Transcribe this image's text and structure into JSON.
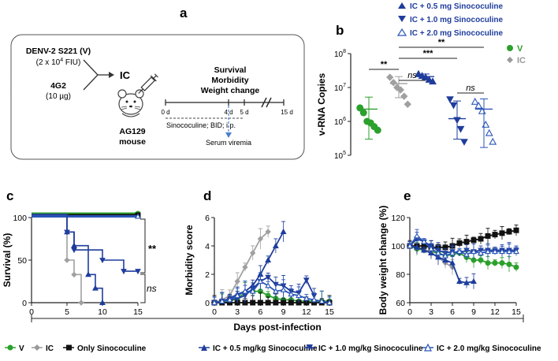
{
  "panel_labels": {
    "a": "a",
    "b": "b",
    "c": "c",
    "d": "d",
    "e": "e"
  },
  "colors": {
    "V": "#2ca02c",
    "IC": "#a0a0a0",
    "only": "#111111",
    "ic05": "#1f3d9c",
    "ic10": "#1f3d9c",
    "ic20": "#2a55b8",
    "legend_text": "#1f3d9c",
    "dash_arrow": "#4a7fd0"
  },
  "schematic": {
    "virus_line1": "DENV-2 S221 (V)",
    "virus_line2_pre": "(2 x 10",
    "virus_line2_sup": "4",
    "virus_line2_post": " FIU)",
    "ab_line1": "4G2",
    "ab_line2": "(10 µg)",
    "ic_label": "IC",
    "mouse_line1": "AG129",
    "mouse_line2": "mouse",
    "readout_title1": "Survival",
    "readout_title2": "Morbidity",
    "readout_title3": "Weight change",
    "timeline_ticks": [
      "0 d",
      "4 d",
      "5 d",
      "15 d"
    ],
    "treatment_label": "Sinococuline; BID; i.p.",
    "serum_label": "Serum viremia",
    "mouse_icon": "mouse-icon",
    "syringe_icon": "syringe-icon"
  },
  "legend_top": [
    {
      "label": "IC + 0.5 mg Sinococuline",
      "marker": "triangle-up-filled"
    },
    {
      "label": "IC + 1.0 mg Sinococuline",
      "marker": "triangle-down-filled"
    },
    {
      "label": "IC + 2.0 mg Sinococuline",
      "marker": "triangle-up-open"
    }
  ],
  "legend_b": [
    {
      "label": "V",
      "marker": "circle"
    },
    {
      "label": "IC",
      "marker": "diamond"
    }
  ],
  "legend_bottom": [
    {
      "label": "V",
      "marker": "circle"
    },
    {
      "label": "IC",
      "marker": "diamond"
    },
    {
      "label": "Only Sinococuline",
      "marker": "square"
    },
    {
      "label": "IC + 0.5 mg/kg Sinococuline",
      "marker": "triangle-up-filled"
    },
    {
      "label": "IC + 1.0 mg/kg Sinococuline",
      "marker": "triangle-down-filled"
    },
    {
      "label": "IC + 2.0 mg/kg Sinococuline",
      "marker": "triangle-up-open"
    }
  ],
  "shared_xlabel": "Days post-infection",
  "chart_data": [
    {
      "panel": "b",
      "type": "scatter",
      "ylabel": "v-RNA Copies",
      "yscale": "log",
      "ylim": [
        100000,
        100000000
      ],
      "yticks": [
        {
          "base": "10",
          "exp": "5",
          "value": 100000
        },
        {
          "base": "10",
          "exp": "6",
          "value": 1000000
        },
        {
          "base": "10",
          "exp": "7",
          "value": 10000000
        },
        {
          "base": "10",
          "exp": "8",
          "value": 100000000
        }
      ],
      "groups": [
        {
          "name": "V",
          "points": [
            2500000,
            1800000,
            1000000,
            900000,
            700000,
            550000
          ],
          "mean": 2300000,
          "sd_low": 300000,
          "sd_high": 5200000
        },
        {
          "name": "IC",
          "points": [
            20000000,
            14000000,
            10000000,
            8500000,
            5500000,
            3200000
          ],
          "mean": 13000000,
          "sd_low": 5000000,
          "sd_high": 21000000
        },
        {
          "name": "IC + 0.5 mg",
          "points": [
            25000000,
            22000000,
            20000000,
            17000000,
            15000000
          ],
          "mean": 21000000,
          "sd_low": 17000000,
          "sd_high": 25000000
        },
        {
          "name": "IC + 1.0 mg",
          "points": [
            4500000,
            3000000,
            1100000,
            600000,
            250000
          ],
          "mean": 1200000,
          "sd_low": 300000,
          "sd_high": 4000000
        },
        {
          "name": "IC + 2.0 mg",
          "points": [
            3800000,
            2900000,
            2000000,
            800000,
            450000,
            250000
          ],
          "mean": 2300000,
          "sd_low": 170000,
          "sd_high": 4600000
        }
      ],
      "significance": [
        {
          "label": "**",
          "pair": [
            "V",
            "IC"
          ]
        },
        {
          "label": "ns",
          "pair": [
            "IC",
            "IC + 0.5 mg"
          ]
        },
        {
          "label": "***",
          "pair": [
            "IC",
            "IC + 1.0 mg"
          ]
        },
        {
          "label": "**",
          "pair": [
            "IC",
            "IC + 2.0 mg"
          ]
        },
        {
          "label": "ns",
          "pair": [
            "IC + 1.0 mg",
            "IC + 2.0 mg"
          ]
        }
      ]
    },
    {
      "panel": "c",
      "type": "line",
      "style": "step",
      "ylabel": "Survival (%)",
      "xlim": [
        0,
        15
      ],
      "ylim": [
        0,
        100
      ],
      "xticks": [
        0,
        5,
        10,
        15
      ],
      "yticks": [
        0,
        50,
        100
      ],
      "series": [
        {
          "name": "V",
          "x": [
            0,
            15
          ],
          "y": [
            100,
            100
          ]
        },
        {
          "name": "Only Sinococuline",
          "x": [
            0,
            15
          ],
          "y": [
            100,
            100
          ]
        },
        {
          "name": "IC + 2.0 mg",
          "x": [
            0,
            15
          ],
          "y": [
            100,
            100
          ]
        },
        {
          "name": "IC",
          "x": [
            0,
            5,
            6,
            7
          ],
          "y": [
            100,
            50,
            33,
            0
          ]
        },
        {
          "name": "IC + 0.5 mg",
          "x": [
            0,
            5,
            6,
            8,
            9,
            10
          ],
          "y": [
            100,
            83,
            67,
            33,
            17,
            0
          ]
        },
        {
          "name": "IC + 1.0 mg",
          "x": [
            0,
            5,
            6,
            10,
            13,
            15
          ],
          "y": [
            100,
            83,
            62,
            50,
            37,
            37
          ]
        }
      ],
      "annotations": [
        "**",
        "ns"
      ]
    },
    {
      "panel": "d",
      "type": "line",
      "ylabel": "Morbidity score",
      "xlim": [
        0,
        15
      ],
      "ylim": [
        0,
        6
      ],
      "xticks": [
        0,
        3,
        6,
        9,
        12,
        15
      ],
      "yticks": [
        0,
        2,
        4,
        6
      ],
      "series": [
        {
          "name": "V",
          "x": [
            0,
            1,
            2,
            3,
            4,
            5,
            6,
            7,
            8,
            9,
            10,
            11,
            12,
            13,
            14,
            15
          ],
          "y": [
            0,
            0,
            0.1,
            0.3,
            0.7,
            0.8,
            0.8,
            0.5,
            0.3,
            0.2,
            0.2,
            0.1,
            0.1,
            0.1,
            0.1,
            0.1
          ]
        },
        {
          "name": "IC",
          "x": [
            0,
            1,
            2,
            3,
            4,
            5,
            6,
            7
          ],
          "y": [
            0,
            0.2,
            0.5,
            1.5,
            2.5,
            3.5,
            4.5,
            5
          ]
        },
        {
          "name": "Only Sinococuline",
          "x": [
            0,
            1,
            2,
            3,
            4,
            5,
            6,
            7,
            8,
            9,
            10,
            11,
            12,
            13,
            14,
            15
          ],
          "y": [
            0,
            0,
            0,
            0,
            0,
            0,
            0,
            0,
            0,
            0,
            0,
            0,
            0,
            0,
            0,
            0
          ]
        },
        {
          "name": "IC + 0.5 mg",
          "x": [
            0,
            1,
            2,
            3,
            4,
            5,
            6,
            7,
            8,
            9
          ],
          "y": [
            0,
            0.1,
            0.3,
            0.6,
            0.8,
            1.2,
            2,
            3,
            4,
            5
          ]
        },
        {
          "name": "IC + 1.0 mg",
          "x": [
            0,
            1,
            2,
            3,
            4,
            5,
            6,
            7,
            8,
            9,
            10,
            11,
            12,
            13
          ],
          "y": [
            0,
            0.1,
            0.2,
            0.3,
            0.5,
            1,
            1.5,
            1.8,
            1.3,
            1.2,
            0.8,
            0.7,
            1.6,
            0.5
          ]
        },
        {
          "name": "IC + 2.0 mg",
          "x": [
            0,
            1,
            2,
            3,
            4,
            5,
            6,
            7,
            8,
            9,
            10,
            11,
            12,
            13,
            14,
            15
          ],
          "y": [
            0,
            0.1,
            0.2,
            0.5,
            0.8,
            0.8,
            1.5,
            1.2,
            0.8,
            0.9,
            0.6,
            0.5,
            0.3,
            0.2,
            0.1,
            0
          ]
        }
      ]
    },
    {
      "panel": "e",
      "type": "line",
      "ylabel": "Body weight change (%)",
      "xlim": [
        0,
        15
      ],
      "ylim": [
        60,
        120
      ],
      "xticks": [
        0,
        3,
        6,
        9,
        12,
        15
      ],
      "yticks": [
        60,
        80,
        100,
        120
      ],
      "series": [
        {
          "name": "V",
          "x": [
            0,
            1,
            2,
            3,
            4,
            5,
            6,
            7,
            8,
            9,
            10,
            11,
            12,
            13,
            14,
            15
          ],
          "y": [
            100,
            98,
            97,
            96,
            95,
            93,
            94,
            95,
            92,
            90,
            90,
            88,
            88,
            88,
            87,
            85
          ]
        },
        {
          "name": "IC",
          "x": [
            0,
            1,
            2,
            3,
            4,
            5,
            6
          ],
          "y": [
            100,
            99,
            98,
            95,
            92,
            88,
            85
          ]
        },
        {
          "name": "Only Sinococuline",
          "x": [
            0,
            1,
            2,
            3,
            4,
            5,
            6,
            7,
            8,
            9,
            10,
            11,
            12,
            13,
            14,
            15
          ],
          "y": [
            100,
            100,
            100,
            99,
            99,
            99,
            100,
            102,
            103,
            104,
            105,
            107,
            108,
            109,
            110,
            111
          ]
        },
        {
          "name": "IC + 0.5 mg",
          "x": [
            0,
            1,
            2,
            3,
            4,
            5,
            6,
            7,
            8,
            9
          ],
          "y": [
            100,
            99,
            97,
            95,
            92,
            90,
            88,
            75,
            74,
            75
          ]
        },
        {
          "name": "IC + 1.0 mg",
          "x": [
            0,
            1,
            2,
            3,
            4,
            5,
            6,
            7,
            8,
            9,
            10,
            11,
            12,
            13,
            14,
            15
          ],
          "y": [
            100,
            105,
            103,
            100,
            97,
            95,
            96,
            95,
            97,
            96,
            97,
            97,
            97,
            97,
            97,
            97
          ]
        },
        {
          "name": "IC + 2.0 mg",
          "x": [
            0,
            1,
            2,
            3,
            4,
            5,
            6,
            7,
            8,
            9,
            10,
            11,
            12,
            13,
            14,
            15
          ],
          "y": [
            100,
            107,
            103,
            98,
            95,
            93,
            95,
            96,
            94,
            96,
            95,
            96,
            96,
            96,
            96,
            96
          ]
        }
      ]
    }
  ]
}
